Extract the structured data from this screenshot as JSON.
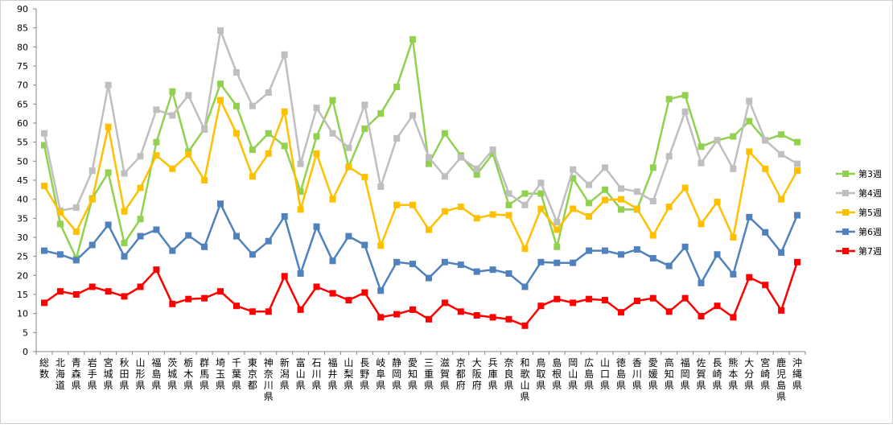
{
  "chart_data": {
    "type": "line",
    "categories": [
      "総数",
      "北海道",
      "青森県",
      "岩手県",
      "宮城県",
      "秋田県",
      "山形県",
      "福島県",
      "茨城県",
      "栃木県",
      "群馬県",
      "埼玉県",
      "千葉県",
      "東京都",
      "神奈川県",
      "新潟県",
      "富山県",
      "石川県",
      "福井県",
      "山梨県",
      "長野県",
      "岐阜県",
      "静岡県",
      "愛知県",
      "三重県",
      "滋賀県",
      "京都府",
      "大阪府",
      "兵庫県",
      "奈良県",
      "和歌山県",
      "鳥取県",
      "島根県",
      "岡山県",
      "広島県",
      "山口県",
      "徳島県",
      "香川県",
      "愛媛県",
      "高知県",
      "福岡県",
      "佐賀県",
      "長崎県",
      "熊本県",
      "大分県",
      "宮崎県",
      "鹿児島県",
      "沖縄県"
    ],
    "yticks": [
      "0",
      "5",
      "10",
      "15",
      "20",
      "25",
      "30",
      "35",
      "40",
      "45",
      "50",
      "55",
      "60",
      "65",
      "70",
      "75",
      "80",
      "85",
      "90"
    ],
    "ylim": [
      0,
      90
    ],
    "grid": false,
    "legend_position": "right",
    "series": [
      {
        "name": "第3週",
        "color": "#92d050",
        "values": [
          54.2,
          33.5,
          24.5,
          40.2,
          47.0,
          28.5,
          34.8,
          55.0,
          68.3,
          52.5,
          58.5,
          70.3,
          64.5,
          53.0,
          57.3,
          54.0,
          42.0,
          56.5,
          66.0,
          48.5,
          58.5,
          62.5,
          69.5,
          82.0,
          49.3,
          57.3,
          51.5,
          46.5,
          52.0,
          38.5,
          41.5,
          41.5,
          27.5,
          45.5,
          39.0,
          42.5,
          37.3,
          37.3,
          48.3,
          66.3,
          67.3,
          53.8,
          55.5,
          56.5,
          60.5,
          55.5,
          57.0,
          55.0
        ]
      },
      {
        "name": "第4週",
        "color": "#bfbfbf",
        "values": [
          57.3,
          37.0,
          37.8,
          47.5,
          70.0,
          46.8,
          51.3,
          63.5,
          62.0,
          67.3,
          58.3,
          84.3,
          73.3,
          64.5,
          68.0,
          78.0,
          49.3,
          64.0,
          57.3,
          53.5,
          64.8,
          43.3,
          56.0,
          62.0,
          51.0,
          46.0,
          51.0,
          48.0,
          53.0,
          41.5,
          38.5,
          44.3,
          34.0,
          47.8,
          43.8,
          48.3,
          42.8,
          42.0,
          39.5,
          51.3,
          63.0,
          49.5,
          55.5,
          48.0,
          65.8,
          55.5,
          51.8,
          49.3
        ]
      },
      {
        "name": "第5週",
        "color": "#ffc000",
        "values": [
          43.5,
          36.5,
          31.5,
          40.0,
          59.0,
          36.8,
          43.0,
          51.5,
          48.0,
          51.8,
          45.0,
          66.0,
          57.3,
          46.0,
          52.0,
          63.0,
          37.3,
          52.0,
          40.0,
          48.5,
          45.8,
          27.8,
          38.5,
          38.5,
          32.0,
          36.8,
          38.0,
          35.0,
          36.0,
          35.8,
          27.0,
          37.5,
          32.0,
          37.5,
          35.5,
          39.8,
          40.0,
          37.5,
          30.5,
          38.0,
          43.0,
          33.5,
          39.3,
          30.0,
          52.5,
          48.0,
          40.0,
          47.5
        ]
      },
      {
        "name": "第6週",
        "color": "#4f81bd",
        "values": [
          26.5,
          25.5,
          24.0,
          28.0,
          33.3,
          25.0,
          30.3,
          32.0,
          26.5,
          30.5,
          27.5,
          38.8,
          30.3,
          25.5,
          29.0,
          35.5,
          20.5,
          32.8,
          23.8,
          30.3,
          28.0,
          16.0,
          23.5,
          23.0,
          19.3,
          23.5,
          22.8,
          21.0,
          21.5,
          20.5,
          17.0,
          23.5,
          23.3,
          23.3,
          26.5,
          26.5,
          25.5,
          26.8,
          24.5,
          22.5,
          27.5,
          18.0,
          25.5,
          20.3,
          35.3,
          31.3,
          26.0,
          35.8
        ]
      },
      {
        "name": "第7週",
        "color": "#ff0000",
        "values": [
          12.8,
          15.8,
          15.0,
          17.0,
          15.8,
          14.5,
          17.0,
          21.5,
          12.5,
          13.8,
          14.0,
          15.8,
          12.0,
          10.5,
          10.5,
          19.8,
          11.0,
          17.0,
          15.3,
          13.5,
          15.5,
          9.0,
          9.8,
          11.0,
          8.5,
          12.8,
          10.5,
          9.5,
          9.0,
          8.5,
          6.8,
          12.0,
          13.8,
          12.8,
          13.8,
          13.5,
          10.3,
          13.3,
          14.0,
          10.5,
          14.0,
          9.3,
          12.0,
          9.0,
          19.5,
          17.5,
          10.8,
          23.5
        ]
      }
    ]
  }
}
